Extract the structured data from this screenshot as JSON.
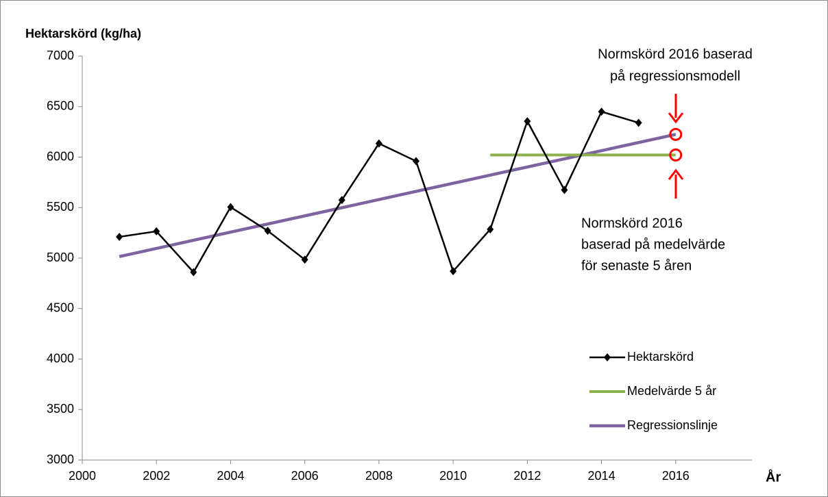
{
  "chart_data": {
    "type": "line",
    "y_label": "Hektarskörd (kg/ha)",
    "x_label": "År",
    "xlim": [
      2000,
      2018
    ],
    "xticks": [
      2000,
      2002,
      2004,
      2006,
      2008,
      2010,
      2012,
      2014,
      2016
    ],
    "ylim": [
      3000,
      7000
    ],
    "yticks": [
      3000,
      3500,
      4000,
      4500,
      5000,
      5500,
      6000,
      6500,
      7000
    ],
    "legend": "lower right",
    "series": [
      {
        "name": "Hektarskörd",
        "color": "#000000",
        "marker": "diamond",
        "x": [
          2001,
          2002,
          2003,
          2004,
          2005,
          2006,
          2007,
          2008,
          2009,
          2010,
          2011,
          2012,
          2013,
          2014,
          2015
        ],
        "values": [
          5210,
          5265,
          4860,
          5505,
          5270,
          4985,
          5575,
          6135,
          5960,
          4870,
          5285,
          6355,
          5675,
          6450,
          6340
        ]
      },
      {
        "name": "Medelvärde 5 år",
        "color": "#8db04e",
        "x": [
          2011,
          2016
        ],
        "values": [
          6021,
          6021
        ]
      },
      {
        "name": "Regressionslinje",
        "color": "#7f63a1",
        "x": [
          2001,
          2016
        ],
        "values": [
          5015,
          6225
        ]
      }
    ],
    "annotations": [
      {
        "lines": [
          "Normskörd 2016 baserad",
          "på regressionsmodell"
        ]
      },
      {
        "lines": [
          "Normskörd 2016",
          "baserad på medelvärde",
          "för senaste 5 åren"
        ]
      }
    ]
  }
}
